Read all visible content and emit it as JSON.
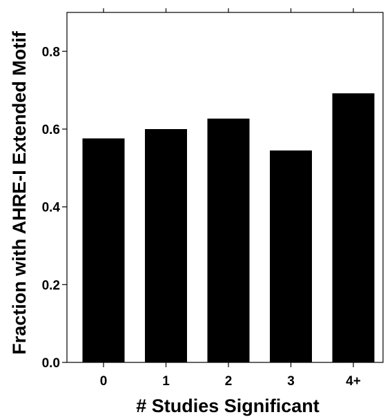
{
  "chart_data": {
    "type": "bar",
    "title": "",
    "xlabel": "# Studies Significant",
    "ylabel": "Fraction with AHRE-I Extended Motif",
    "categories": [
      "0",
      "1",
      "2",
      "3",
      "4+"
    ],
    "values": [
      0.576,
      0.6,
      0.627,
      0.545,
      0.692
    ],
    "ylim": [
      0.0,
      0.9
    ],
    "yticks": [
      0.0,
      0.2,
      0.4,
      0.6,
      0.8
    ],
    "ytick_labels": [
      "0.0",
      "0.2",
      "0.4",
      "0.6",
      "0.8"
    ],
    "grid": false,
    "legend": "none",
    "bar_color": "#000000"
  }
}
